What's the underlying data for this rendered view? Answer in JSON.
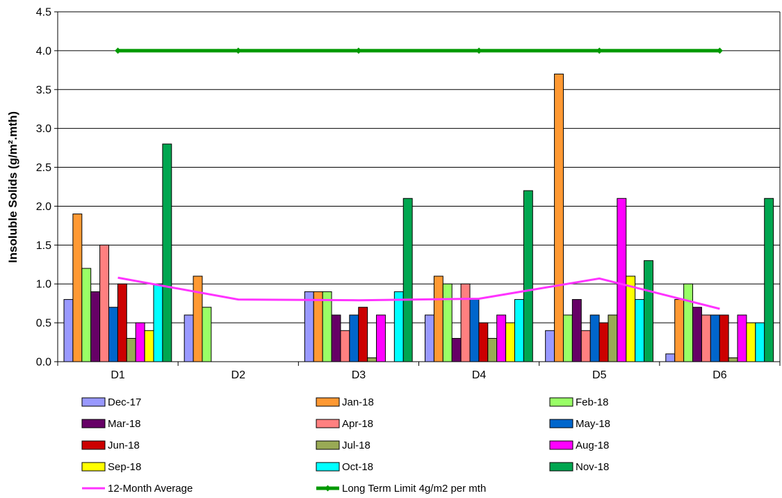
{
  "chart_data": {
    "type": "bar",
    "title": "",
    "xlabel": "",
    "ylabel": "Insoluble Solids (g/m².mth)",
    "ylim": [
      0,
      4.5
    ],
    "yticks": [
      "0.0",
      "0.5",
      "1.0",
      "1.5",
      "2.0",
      "2.5",
      "3.0",
      "3.5",
      "4.0",
      "4.5"
    ],
    "grid": "horizontal",
    "legend_position": "bottom",
    "categories": [
      "D1",
      "D2",
      "D3",
      "D4",
      "D5",
      "D6"
    ],
    "series": [
      {
        "name": "Dec-17",
        "color": "#9999ff",
        "values": [
          0.8,
          0.6,
          0.9,
          0.6,
          0.4,
          0.1
        ]
      },
      {
        "name": "Jan-18",
        "color": "#ff9933",
        "values": [
          1.9,
          1.1,
          0.9,
          1.1,
          3.7,
          0.8
        ]
      },
      {
        "name": "Feb-18",
        "color": "#99ff66",
        "values": [
          1.2,
          0.7,
          0.9,
          1.0,
          0.6,
          1.0
        ]
      },
      {
        "name": "Mar-18",
        "color": "#660066",
        "values": [
          0.9,
          null,
          0.6,
          0.3,
          0.8,
          0.7
        ]
      },
      {
        "name": "Apr-18",
        "color": "#ff8080",
        "values": [
          1.5,
          null,
          0.4,
          1.0,
          0.4,
          0.6
        ]
      },
      {
        "name": "May-18",
        "color": "#0066cc",
        "values": [
          0.7,
          null,
          0.6,
          0.8,
          0.6,
          0.6
        ]
      },
      {
        "name": "Jun-18",
        "color": "#cc0000",
        "values": [
          1.0,
          null,
          0.7,
          0.5,
          0.5,
          0.6
        ]
      },
      {
        "name": "Jul-18",
        "color": "#99aa55",
        "values": [
          0.3,
          null,
          0.05,
          0.3,
          0.6,
          0.05
        ]
      },
      {
        "name": "Aug-18",
        "color": "#ff00ff",
        "values": [
          0.5,
          null,
          0.6,
          0.6,
          2.1,
          0.6
        ]
      },
      {
        "name": "Sep-18",
        "color": "#ffff00",
        "values": [
          0.4,
          null,
          null,
          0.5,
          1.1,
          0.5
        ]
      },
      {
        "name": "Oct-18",
        "color": "#00ffff",
        "values": [
          1.0,
          null,
          0.9,
          0.8,
          0.8,
          0.5
        ]
      },
      {
        "name": "Nov-18",
        "color": "#00a650",
        "values": [
          2.8,
          null,
          2.1,
          2.2,
          1.3,
          2.1
        ]
      }
    ],
    "lines": [
      {
        "name": "12-Month Average",
        "color": "#ff33ff",
        "values": [
          1.08,
          0.8,
          0.79,
          0.81,
          1.07,
          0.68
        ],
        "marker": false
      },
      {
        "name": "Long Term Limit 4g/m2 per mth",
        "color": "#009900",
        "values": [
          4.0,
          4.0,
          4.0,
          4.0,
          4.0,
          4.0
        ],
        "marker": true
      }
    ]
  }
}
